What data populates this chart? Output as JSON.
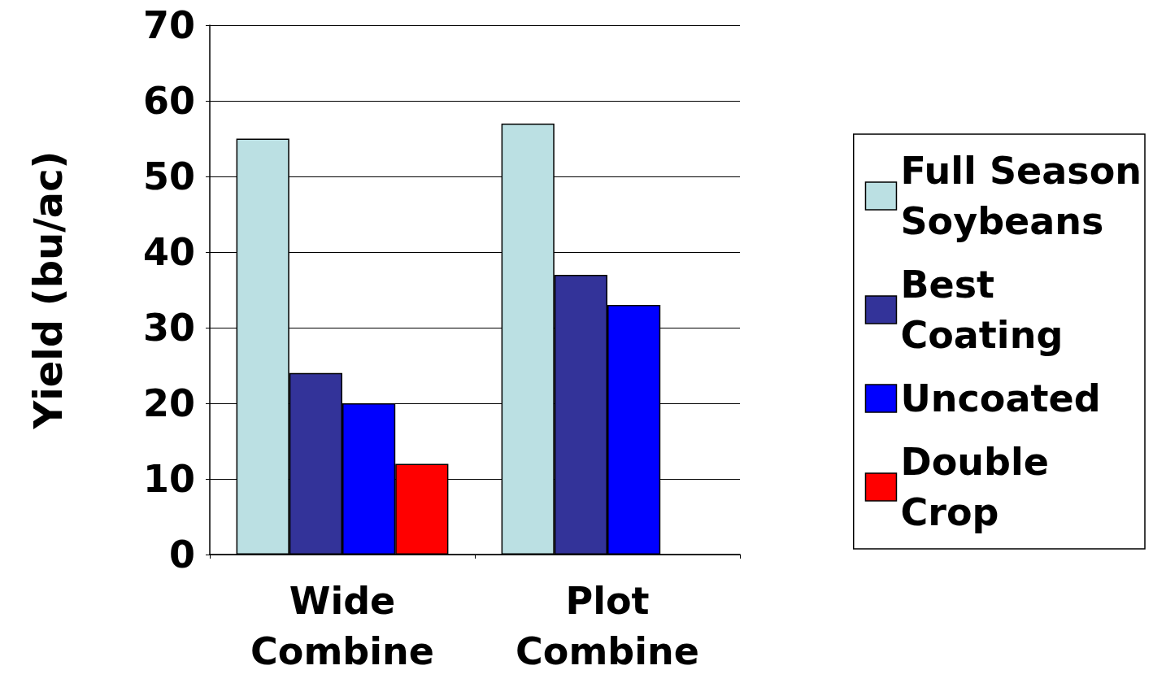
{
  "chart_data": {
    "type": "bar",
    "ylabel": "Yield (bu/ac)",
    "categories": [
      "Wide\nCombine",
      "Plot\nCombine"
    ],
    "series": [
      {
        "name": "Full Season\nSoybeans",
        "color": "#bbe0e3",
        "values": [
          55,
          57
        ]
      },
      {
        "name": "Best\nCoating",
        "color": "#333399",
        "values": [
          24,
          37
        ]
      },
      {
        "name": "Uncoated",
        "color": "#0000ff",
        "values": [
          20,
          33
        ]
      },
      {
        "name": "Double\nCrop",
        "color": "#ff0000",
        "values": [
          12,
          null
        ]
      }
    ],
    "ylim": [
      0,
      70
    ],
    "yticks": [
      0,
      10,
      20,
      30,
      40,
      50,
      60,
      70
    ],
    "grid": "y",
    "legend": "right"
  }
}
